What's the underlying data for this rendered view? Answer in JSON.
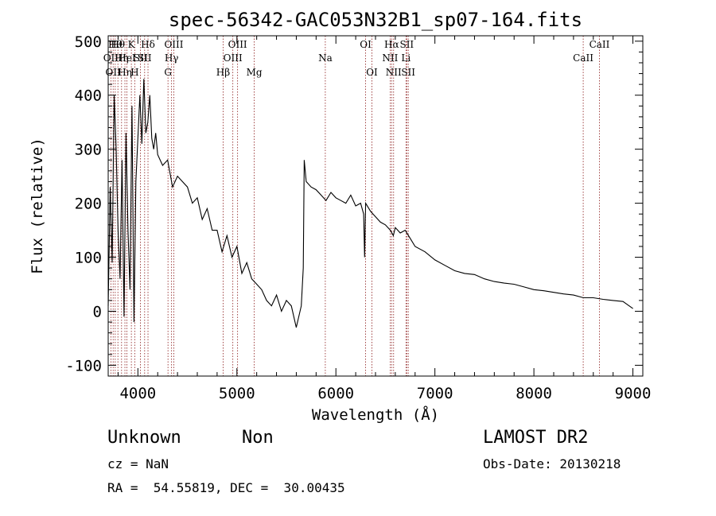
{
  "chart_data": {
    "type": "line",
    "title": "spec-56342-GAC053N32B1_sp07-164.fits",
    "xlabel": "Wavelength (Å)",
    "ylabel": "Flux (relative)",
    "xlim": [
      3700,
      9100
    ],
    "ylim": [
      -120,
      510
    ],
    "xticks": [
      4000,
      5000,
      6000,
      7000,
      8000,
      9000
    ],
    "yticks": [
      -100,
      0,
      100,
      200,
      300,
      400,
      500
    ],
    "grid": false,
    "series": [
      {
        "x": [
          3700,
          3720,
          3740,
          3760,
          3780,
          3800,
          3820,
          3840,
          3860,
          3880,
          3900,
          3920,
          3940,
          3960,
          3980,
          4000,
          4020,
          4040,
          4060,
          4080,
          4100,
          4120,
          4140,
          4160,
          4180,
          4200,
          4250,
          4300,
          4350,
          4400,
          4450,
          4500,
          4550,
          4600,
          4650,
          4700,
          4750,
          4800,
          4850,
          4900,
          4950,
          5000,
          5050,
          5100,
          5150,
          5200,
          5250,
          5300,
          5350,
          5400,
          5450,
          5500,
          5550,
          5600,
          5650,
          5670,
          5680,
          5700,
          5750,
          5800,
          5850,
          5900,
          5950,
          6000,
          6050,
          6100,
          6150,
          6200,
          6250,
          6280,
          6290,
          6300,
          6350,
          6400,
          6450,
          6500,
          6550,
          6580,
          6600,
          6650,
          6700,
          6750,
          6800,
          6900,
          7000,
          7100,
          7200,
          7300,
          7400,
          7500,
          7600,
          7700,
          7800,
          7900,
          8000,
          8100,
          8200,
          8300,
          8400,
          8500,
          8600,
          8700,
          8800,
          8900,
          9000
        ],
        "values": [
          10,
          230,
          90,
          400,
          300,
          150,
          60,
          280,
          -10,
          330,
          150,
          40,
          380,
          -20,
          240,
          320,
          400,
          310,
          430,
          330,
          350,
          400,
          320,
          300,
          330,
          290,
          270,
          280,
          230,
          250,
          240,
          230,
          200,
          210,
          170,
          190,
          150,
          150,
          110,
          140,
          100,
          120,
          70,
          90,
          60,
          50,
          40,
          20,
          10,
          30,
          0,
          20,
          10,
          -30,
          10,
          80,
          280,
          240,
          230,
          225,
          215,
          205,
          220,
          210,
          205,
          200,
          215,
          195,
          200,
          180,
          100,
          200,
          185,
          175,
          165,
          160,
          150,
          140,
          155,
          145,
          150,
          135,
          120,
          110,
          95,
          85,
          75,
          70,
          68,
          60,
          55,
          52,
          50,
          45,
          40,
          38,
          35,
          32,
          30,
          25,
          25,
          22,
          20,
          18,
          5
        ]
      }
    ],
    "line_markers": [
      {
        "wl": 3727,
        "label": "OII",
        "row": 1
      },
      {
        "wl": 3750,
        "label": "OII",
        "row": 2
      },
      {
        "wl": 3771,
        "label": "Hθ",
        "row": 0
      },
      {
        "wl": 3798,
        "label": "Hθ",
        "row": 0
      },
      {
        "wl": 3835,
        "label": "Hη",
        "row": 1
      },
      {
        "wl": 3869,
        "label": "Hη",
        "row": 2
      },
      {
        "wl": 3889,
        "label": "HeI",
        "row": 1
      },
      {
        "wl": 3934,
        "label": "K",
        "row": 0
      },
      {
        "wl": 3968,
        "label": "H",
        "row": 2
      },
      {
        "wl": 4026,
        "label": "SII",
        "row": 1
      },
      {
        "wl": 4068,
        "label": "SII",
        "row": 1
      },
      {
        "wl": 4102,
        "label": "Hδ",
        "row": 0
      },
      {
        "wl": 4304,
        "label": "G",
        "row": 2
      },
      {
        "wl": 4340,
        "label": "Hγ",
        "row": 1
      },
      {
        "wl": 4363,
        "label": "OIII",
        "row": 0
      },
      {
        "wl": 4861,
        "label": "Hβ",
        "row": 2
      },
      {
        "wl": 4959,
        "label": "OIII",
        "row": 1
      },
      {
        "wl": 5007,
        "label": "OIII",
        "row": 0
      },
      {
        "wl": 5175,
        "label": "Mg",
        "row": 2
      },
      {
        "wl": 5893,
        "label": "Na",
        "row": 1
      },
      {
        "wl": 6300,
        "label": "OI",
        "row": 0
      },
      {
        "wl": 6364,
        "label": "OI",
        "row": 2
      },
      {
        "wl": 6548,
        "label": "NII",
        "row": 1
      },
      {
        "wl": 6563,
        "label": "Hα",
        "row": 0
      },
      {
        "wl": 6583,
        "label": "NII",
        "row": 2
      },
      {
        "wl": 6708,
        "label": "Li",
        "row": 1
      },
      {
        "wl": 6716,
        "label": "SII",
        "row": 0
      },
      {
        "wl": 6731,
        "label": "SII",
        "row": 2
      },
      {
        "wl": 8498,
        "label": "CaII",
        "row": 1
      },
      {
        "wl": 8662,
        "label": "CaII",
        "row": 0
      }
    ]
  },
  "info": {
    "class_label": "Unknown",
    "subclass_label": "Non",
    "survey": "LAMOST DR2",
    "cz": "cz = NaN",
    "obs_date": "Obs-Date: 20130218",
    "radec": "RA =  54.55819, DEC =  30.00435"
  }
}
